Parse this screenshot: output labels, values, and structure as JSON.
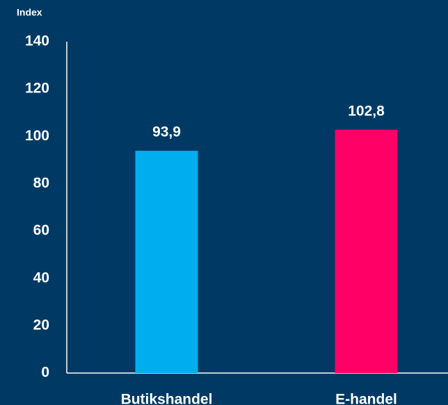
{
  "chart_data": {
    "type": "bar",
    "y_label": "Index",
    "categories": [
      "Butikshandel",
      "E-handel"
    ],
    "values": [
      93.9,
      102.8
    ],
    "value_labels": [
      "93,9",
      "102,8"
    ],
    "colors": [
      "#00aeef",
      "#ff0066"
    ],
    "ylim": [
      0,
      140
    ],
    "yticks": [
      0,
      20,
      40,
      60,
      80,
      100,
      120,
      140
    ],
    "grid": false
  }
}
